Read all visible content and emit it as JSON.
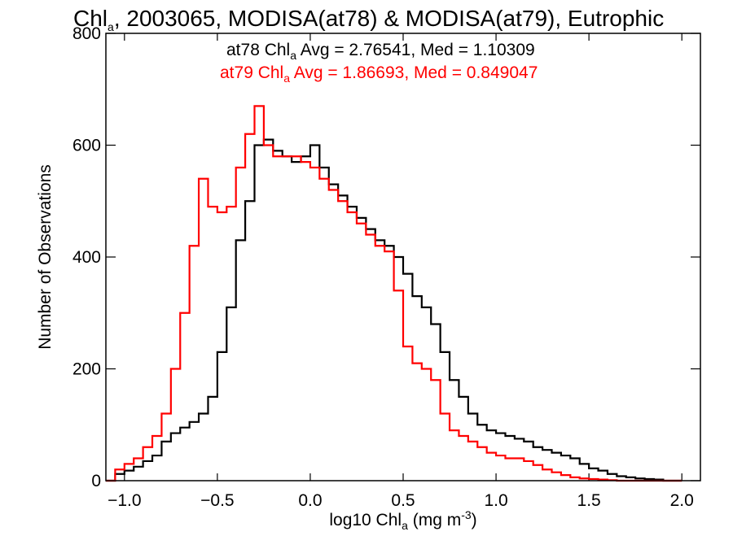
{
  "chart_data": {
    "type": "histogram",
    "title": {
      "pre": "Chl",
      "sub": "a",
      "post": ", 2003065, MODISA(at78) & MODISA(at79), Eutrophic"
    },
    "xlabel": {
      "pre": "log10 Chl",
      "sub": "a",
      "mid": " (mg m",
      "sup": "-3",
      "post": ")"
    },
    "ylabel": "Number of Observations",
    "xlim": [
      -1.1,
      2.1
    ],
    "ylim": [
      0,
      800
    ],
    "xticks": [
      -1.0,
      -0.5,
      0.0,
      0.5,
      1.0,
      1.5,
      2.0
    ],
    "xtick_labels": [
      "−1.0",
      "−0.5",
      "0.0",
      "0.5",
      "1.0",
      "1.5",
      "2.0"
    ],
    "yticks": [
      0,
      200,
      400,
      600,
      800
    ],
    "ytick_labels": [
      "0",
      "200",
      "400",
      "600",
      "800"
    ],
    "grid": false,
    "annotations": [
      {
        "pre": "at78 Chl",
        "sub": "a",
        "post": " Avg = 2.76541, Med = 1.10309",
        "color": "#000000"
      },
      {
        "pre": "at79 Chl",
        "sub": "a",
        "post": " Avg = 1.86693, Med = 0.849047",
        "color": "#ff0000"
      }
    ],
    "series": [
      {
        "color": "#000000",
        "x": [
          -1.1,
          -1.05,
          -1.0,
          -0.95,
          -0.9,
          -0.85,
          -0.8,
          -0.75,
          -0.7,
          -0.65,
          -0.6,
          -0.55,
          -0.5,
          -0.45,
          -0.4,
          -0.35,
          -0.3,
          -0.25,
          -0.2,
          -0.15,
          -0.1,
          -0.05,
          0.0,
          0.05,
          0.1,
          0.15,
          0.2,
          0.25,
          0.3,
          0.35,
          0.4,
          0.45,
          0.5,
          0.55,
          0.6,
          0.65,
          0.7,
          0.75,
          0.8,
          0.85,
          0.9,
          0.95,
          1.0,
          1.05,
          1.1,
          1.15,
          1.2,
          1.25,
          1.3,
          1.35,
          1.4,
          1.45,
          1.5,
          1.55,
          1.6,
          1.65,
          1.7,
          1.75,
          1.8,
          1.85,
          1.9,
          1.95,
          2.0
        ],
        "y": [
          0,
          12,
          18,
          25,
          35,
          45,
          70,
          85,
          95,
          105,
          120,
          150,
          230,
          310,
          430,
          500,
          600,
          610,
          590,
          580,
          570,
          580,
          600,
          560,
          530,
          510,
          490,
          470,
          450,
          430,
          420,
          400,
          370,
          330,
          310,
          280,
          230,
          180,
          150,
          120,
          100,
          90,
          85,
          80,
          75,
          70,
          60,
          55,
          50,
          45,
          40,
          30,
          22,
          18,
          12,
          8,
          6,
          4,
          3,
          2,
          0,
          0,
          0
        ]
      },
      {
        "color": "#ff0000",
        "x": [
          -1.1,
          -1.05,
          -1.0,
          -0.95,
          -0.9,
          -0.85,
          -0.8,
          -0.75,
          -0.7,
          -0.65,
          -0.6,
          -0.55,
          -0.5,
          -0.45,
          -0.4,
          -0.35,
          -0.3,
          -0.25,
          -0.2,
          -0.15,
          -0.1,
          -0.05,
          0.0,
          0.05,
          0.1,
          0.15,
          0.2,
          0.25,
          0.3,
          0.35,
          0.4,
          0.45,
          0.5,
          0.55,
          0.6,
          0.65,
          0.7,
          0.75,
          0.8,
          0.85,
          0.9,
          0.95,
          1.0,
          1.05,
          1.1,
          1.15,
          1.2,
          1.25,
          1.3,
          1.35,
          1.4,
          1.45,
          1.5,
          1.55,
          1.6,
          1.65,
          1.7,
          1.75,
          1.8,
          1.85,
          1.9,
          1.95,
          2.0
        ],
        "y": [
          0,
          20,
          30,
          40,
          60,
          80,
          120,
          200,
          300,
          420,
          540,
          490,
          480,
          490,
          560,
          620,
          670,
          600,
          580,
          580,
          580,
          570,
          560,
          540,
          520,
          500,
          480,
          460,
          440,
          420,
          410,
          340,
          240,
          210,
          200,
          180,
          120,
          90,
          80,
          70,
          60,
          50,
          45,
          40,
          40,
          35,
          28,
          20,
          15,
          10,
          6,
          4,
          3,
          2,
          1,
          0,
          0,
          0,
          0,
          0,
          0,
          0,
          0
        ]
      }
    ]
  }
}
